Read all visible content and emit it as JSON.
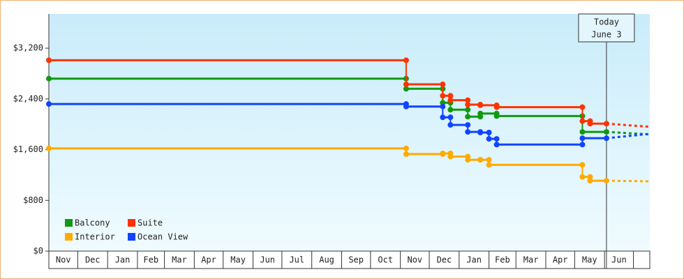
{
  "chart_data": {
    "type": "step",
    "xlim": [
      0,
      624
    ],
    "xticks": [
      {
        "value": 0,
        "label": "Nov"
      },
      {
        "value": 30,
        "label": "Dec"
      },
      {
        "value": 61,
        "label": "Jan"
      },
      {
        "value": 92,
        "label": "Feb"
      },
      {
        "value": 120,
        "label": "Mar"
      },
      {
        "value": 151,
        "label": "Apr"
      },
      {
        "value": 181,
        "label": "May"
      },
      {
        "value": 212,
        "label": "Jun"
      },
      {
        "value": 242,
        "label": "Jul"
      },
      {
        "value": 273,
        "label": "Aug"
      },
      {
        "value": 304,
        "label": "Sep"
      },
      {
        "value": 334,
        "label": "Oct"
      },
      {
        "value": 365,
        "label": "Nov"
      },
      {
        "value": 395,
        "label": "Dec"
      },
      {
        "value": 426,
        "label": "Jan"
      },
      {
        "value": 457,
        "label": "Feb"
      },
      {
        "value": 485,
        "label": "Mar"
      },
      {
        "value": 516,
        "label": "Apr"
      },
      {
        "value": 546,
        "label": "May"
      },
      {
        "value": 577,
        "label": "Jun"
      },
      {
        "value": 607,
        "label": ""
      }
    ],
    "ylim": [
      0,
      3740
    ],
    "yticks": [
      {
        "value": 0,
        "label": "$0"
      },
      {
        "value": 800,
        "label": "$800"
      },
      {
        "value": 1600,
        "label": "$1,600"
      },
      {
        "value": 2400,
        "label": "$2,400"
      },
      {
        "value": 3200,
        "label": "$3,200"
      }
    ],
    "today": {
      "x": 579,
      "label": [
        "Today",
        "June 3"
      ]
    },
    "legend": "lower left",
    "series": [
      {
        "name": "Balcony",
        "color": "#119911",
        "x": [
          0,
          371,
          409,
          417,
          435,
          448,
          465,
          554
        ],
        "values": [
          2720,
          2560,
          2340,
          2230,
          2120,
          2170,
          2130,
          1880
        ],
        "projection": {
          "x": [
            579,
            624
          ],
          "values": [
            1880,
            1840
          ]
        }
      },
      {
        "name": "Suite",
        "color": "#ff3300",
        "x": [
          0,
          371,
          409,
          417,
          435,
          448,
          465,
          554,
          562
        ],
        "values": [
          3010,
          2630,
          2450,
          2380,
          2310,
          2300,
          2270,
          2050,
          2010
        ],
        "projection": {
          "x": [
            579,
            624
          ],
          "values": [
            2010,
            1960
          ]
        }
      },
      {
        "name": "Interior",
        "color": "#ffaa00",
        "x": [
          0,
          371,
          409,
          417,
          435,
          448,
          457,
          554,
          562
        ],
        "values": [
          1620,
          1530,
          1540,
          1490,
          1440,
          1440,
          1360,
          1170,
          1110
        ],
        "projection": {
          "x": [
            579,
            624
          ],
          "values": [
            1110,
            1100
          ]
        }
      },
      {
        "name": "Ocean View",
        "color": "#1144ff",
        "x": [
          0,
          371,
          409,
          417,
          435,
          448,
          457,
          465,
          554
        ],
        "values": [
          2320,
          2280,
          2110,
          1990,
          1880,
          1870,
          1770,
          1680,
          1780
        ],
        "projection": {
          "x": [
            579,
            624
          ],
          "values": [
            1780,
            1850
          ]
        }
      }
    ]
  }
}
